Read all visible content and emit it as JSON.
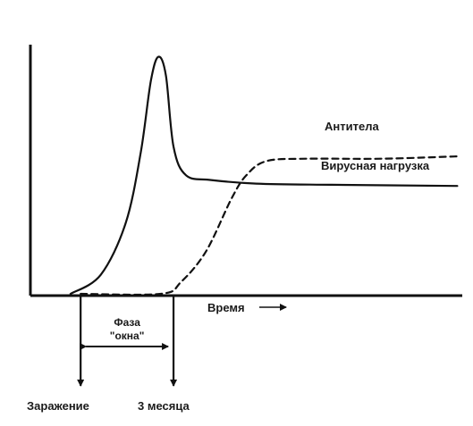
{
  "chart_data": {
    "type": "line",
    "title": "",
    "xlabel": "Время",
    "ylabel": "",
    "grid": false,
    "legend": "inline",
    "series": [
      {
        "name": "Вирусная нагрузка",
        "style": "solid",
        "points": [
          [
            0.8,
            0.0
          ],
          [
            1.4,
            0.08
          ],
          [
            1.9,
            0.3
          ],
          [
            2.2,
            0.6
          ],
          [
            2.4,
            0.9
          ],
          [
            2.55,
            1.0
          ],
          [
            2.7,
            0.92
          ],
          [
            2.85,
            0.62
          ],
          [
            3.1,
            0.5
          ],
          [
            3.6,
            0.48
          ],
          [
            4.5,
            0.465
          ],
          [
            6,
            0.46
          ],
          [
            8.5,
            0.455
          ]
        ]
      },
      {
        "name": "Антитела",
        "style": "dashed",
        "points": [
          [
            1.0,
            0.0
          ],
          [
            2.6,
            0.0
          ],
          [
            3.0,
            0.05
          ],
          [
            3.5,
            0.18
          ],
          [
            4.0,
            0.4
          ],
          [
            4.3,
            0.5
          ],
          [
            4.7,
            0.56
          ],
          [
            5.5,
            0.57
          ],
          [
            7.0,
            0.57
          ],
          [
            8.5,
            0.58
          ]
        ]
      }
    ],
    "annotations": {
      "infection": "Заражение",
      "three_months": "3 месяца",
      "window_line1": "Фаза",
      "window_line2": "\"окна\"",
      "time_arrow": "→"
    },
    "markers_x": {
      "infection": 1.0,
      "three_months": 2.85
    },
    "xlim": [
      0,
      8.6
    ],
    "ylim": [
      0,
      1.07
    ],
    "colors": {
      "ink": "#111111"
    }
  }
}
